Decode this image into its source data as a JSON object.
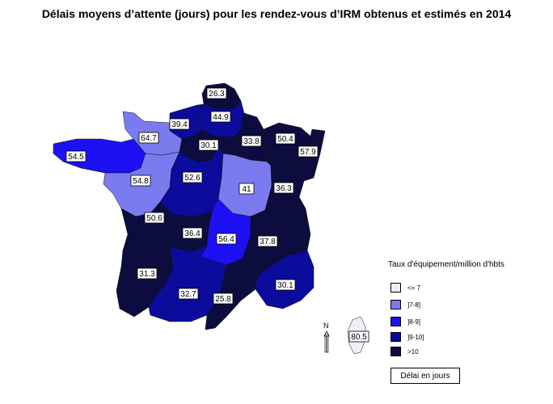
{
  "title": "Délais moyens d’attente (jours) pour les rendez-vous d’IRM obtenus et estimés en 2014",
  "legend": {
    "title": "Taux d'équipement/million d'hbts",
    "items": [
      {
        "label": "<= 7",
        "color": "#eeeef8"
      },
      {
        "label": "]7-8]",
        "color": "#7b7bef"
      },
      {
        "label": "]8-9]",
        "color": "#1d10f2"
      },
      {
        "label": "]9-10]",
        "color": "#0b0b9c"
      },
      {
        "label": ">10",
        "color": "#0c0c3e"
      }
    ]
  },
  "note": "Délai en jours",
  "north_label": "N",
  "regions": {
    "nord_pdc": {
      "value": "26.3",
      "color": "#0c0c3e"
    },
    "picardie": {
      "value": "44.9",
      "color": "#0b0b9c"
    },
    "haute_normandie": {
      "value": "39.4",
      "color": "#0b0b9c"
    },
    "basse_normandie": {
      "value": "64.7",
      "color": "#7b7bef"
    },
    "bretagne": {
      "value": "54.5",
      "color": "#1d10f2"
    },
    "pays_de_loire": {
      "value": "54.8",
      "color": "#7b7bef"
    },
    "idf": {
      "value": "30.1",
      "color": "#0c0c3e"
    },
    "champagne": {
      "value": "33.8",
      "color": "#0c0c3e"
    },
    "lorraine": {
      "value": "50.4",
      "color": "#0c0c3e"
    },
    "alsace": {
      "value": "57.9",
      "color": "#0c0c3e"
    },
    "centre": {
      "value": "52.6",
      "color": "#0b0b9c"
    },
    "bourgogne": {
      "value": "41",
      "color": "#7b7bef"
    },
    "franche_comte": {
      "value": "36.3",
      "color": "#0c0c3e"
    },
    "poitou": {
      "value": "50.6",
      "color": "#0c0c3e"
    },
    "limousin": {
      "value": "36.4",
      "color": "#0c0c3e"
    },
    "auvergne": {
      "value": "56.4",
      "color": "#1d10f2"
    },
    "rhone_alpes": {
      "value": "37.8",
      "color": "#0c0c3e"
    },
    "aquitaine": {
      "value": "31.3",
      "color": "#0c0c3e"
    },
    "midi_pyrenees": {
      "value": "32.7",
      "color": "#0b0b9c"
    },
    "languedoc": {
      "value": "25.8",
      "color": "#0c0c3e"
    },
    "paca": {
      "value": "30.1",
      "color": "#0b0b9c"
    },
    "corse": {
      "value": "80.5",
      "color": "#eeeef8"
    }
  }
}
